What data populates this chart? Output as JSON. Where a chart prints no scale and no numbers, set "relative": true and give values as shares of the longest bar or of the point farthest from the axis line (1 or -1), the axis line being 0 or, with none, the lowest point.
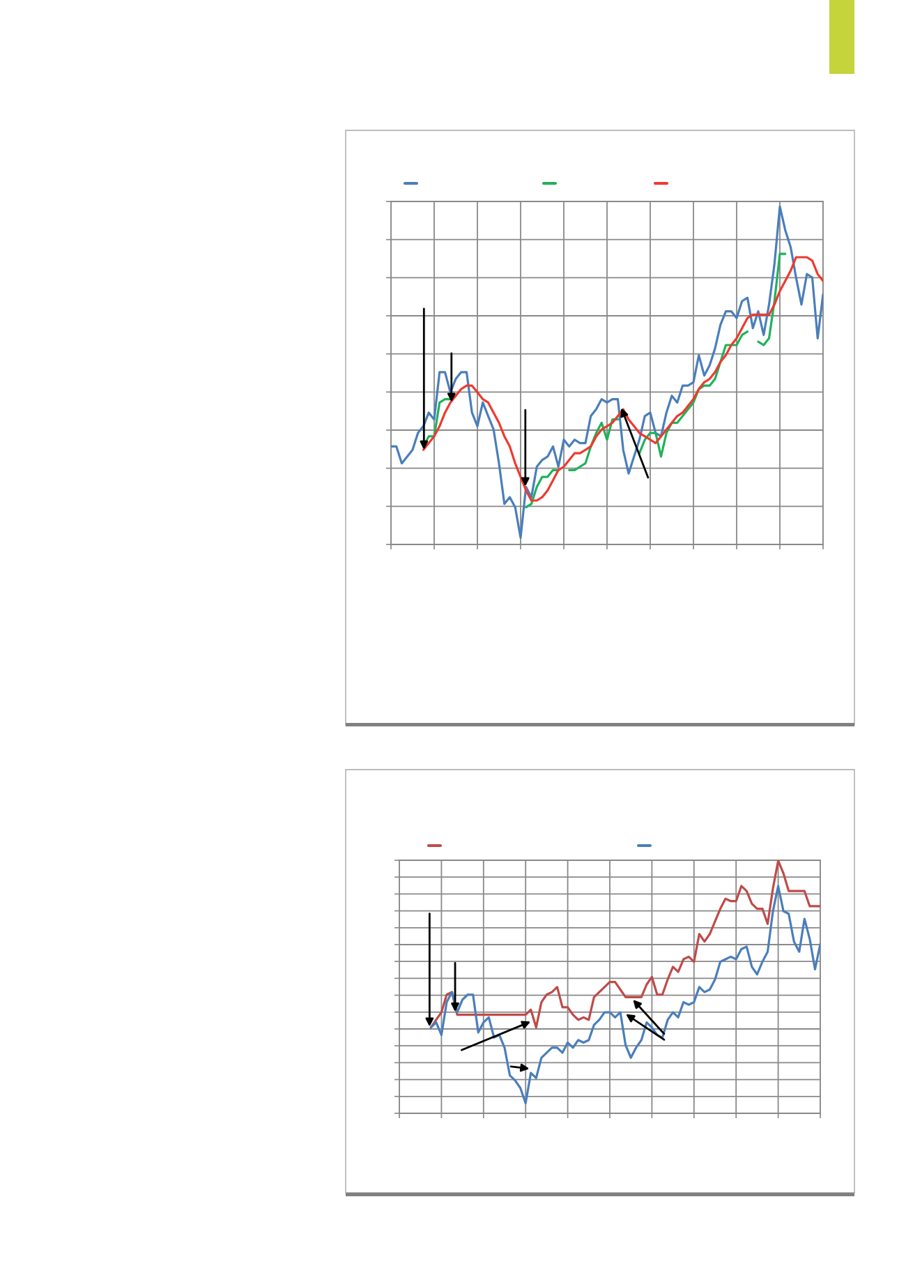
{
  "chart_data": [
    {
      "type": "line",
      "relative": true,
      "grid": true,
      "tick_labels": false,
      "categories": [
        null,
        null,
        null,
        null,
        null,
        null,
        null,
        null,
        null,
        null,
        null,
        null,
        null,
        null,
        null,
        null,
        null,
        null,
        null,
        null,
        null,
        null,
        null,
        null,
        null,
        null,
        null,
        null,
        null,
        null,
        null,
        null,
        null,
        null,
        null,
        null,
        null,
        null,
        null,
        null,
        null,
        null,
        null,
        null,
        null,
        null,
        null,
        null,
        null,
        null,
        null,
        null,
        null,
        null,
        null,
        null,
        null,
        null,
        null,
        null,
        null,
        null,
        null,
        null,
        null,
        null,
        null,
        null,
        null,
        null,
        null,
        null,
        null,
        null,
        null,
        null,
        null,
        null,
        null,
        null,
        null
      ],
      "series": [
        {
          "color": "#4a7ebb",
          "values": [
            0.29,
            0.29,
            0.24,
            0.26,
            0.28,
            0.33,
            0.35,
            0.39,
            0.37,
            0.51,
            0.51,
            0.45,
            0.49,
            0.51,
            0.51,
            0.39,
            0.35,
            0.42,
            0.38,
            0.34,
            0.24,
            0.12,
            0.14,
            0.11,
            0.02,
            0.17,
            0.14,
            0.23,
            0.25,
            0.26,
            0.29,
            0.23,
            0.31,
            0.29,
            0.31,
            0.3,
            0.3,
            0.38,
            0.4,
            0.43,
            0.42,
            0.43,
            0.43,
            0.28,
            0.21,
            0.26,
            0.31,
            0.38,
            0.39,
            0.33,
            0.32,
            0.39,
            0.44,
            0.42,
            0.47,
            0.47,
            0.48,
            0.56,
            0.5,
            0.53,
            0.58,
            0.65,
            0.69,
            0.69,
            0.67,
            0.72,
            0.73,
            0.64,
            0.69,
            0.62,
            0.71,
            0.83,
            1,
            0.93,
            0.88,
            0.79,
            0.71,
            0.8,
            0.79,
            0.61,
            0.74
          ]
        },
        {
          "color": "#1fb25a",
          "values": [
            null,
            null,
            null,
            null,
            null,
            null,
            0.29,
            0.32,
            0.32,
            0.42,
            0.43,
            0.43,
            null,
            null,
            null,
            null,
            null,
            null,
            null,
            null,
            null,
            null,
            null,
            null,
            null,
            0.11,
            0.12,
            0.17,
            0.2,
            0.2,
            0.22,
            0.22,
            null,
            0.22,
            0.22,
            0.23,
            0.24,
            0.29,
            0.33,
            0.36,
            0.31,
            0.37,
            0.37,
            null,
            null,
            null,
            0.27,
            0.31,
            0.33,
            0.33,
            0.26,
            0.33,
            0.36,
            0.36,
            0.38,
            0.4,
            0.42,
            0.46,
            0.47,
            0.47,
            0.49,
            0.54,
            0.59,
            0.59,
            0.59,
            0.62,
            0.63,
            null,
            0.6,
            0.59,
            0.61,
            0.72,
            0.86,
            0.86,
            null,
            null,
            null,
            null,
            null,
            null,
            null
          ]
        },
        {
          "color": "#ee3a2e",
          "values": [
            null,
            null,
            null,
            null,
            null,
            null,
            0.28,
            0.3,
            0.32,
            0.35,
            0.39,
            0.42,
            0.44,
            0.46,
            0.47,
            0.47,
            0.45,
            0.43,
            0.42,
            0.39,
            0.36,
            0.32,
            0.29,
            0.24,
            0.2,
            0.16,
            0.13,
            0.13,
            0.14,
            0.16,
            0.19,
            0.22,
            0.23,
            0.25,
            0.27,
            0.27,
            0.28,
            0.29,
            0.32,
            0.34,
            0.35,
            0.36,
            0.38,
            0.4,
            0.37,
            0.35,
            0.33,
            0.32,
            0.31,
            0.3,
            0.32,
            0.34,
            0.36,
            0.38,
            0.39,
            0.41,
            0.43,
            0.46,
            0.48,
            0.49,
            0.51,
            0.54,
            0.56,
            0.59,
            0.61,
            0.64,
            0.67,
            0.68,
            0.68,
            0.68,
            0.68,
            0.71,
            0.75,
            0.78,
            0.81,
            0.85,
            0.85,
            0.85,
            0.84,
            0.8,
            0.78
          ]
        }
      ]
    },
    {
      "type": "line",
      "relative": true,
      "grid": true,
      "tick_labels": false,
      "categories": [
        null,
        null,
        null,
        null,
        null,
        null,
        null,
        null,
        null,
        null,
        null,
        null,
        null,
        null,
        null,
        null,
        null,
        null,
        null,
        null,
        null,
        null,
        null,
        null,
        null,
        null,
        null,
        null,
        null,
        null,
        null,
        null,
        null,
        null,
        null,
        null,
        null,
        null,
        null,
        null,
        null,
        null,
        null,
        null,
        null,
        null,
        null,
        null,
        null,
        null,
        null,
        null,
        null,
        null,
        null,
        null,
        null,
        null,
        null,
        null,
        null,
        null,
        null,
        null,
        null,
        null,
        null,
        null,
        null,
        null,
        null,
        null,
        null,
        null,
        null,
        null,
        null,
        null,
        null,
        null,
        null
      ],
      "series": [
        {
          "color": "#be4b48",
          "values": [
            null,
            null,
            null,
            null,
            null,
            null,
            0.34,
            0.37,
            0.4,
            0.47,
            0.48,
            0.39,
            0.39,
            0.39,
            0.39,
            0.39,
            0.39,
            0.39,
            0.39,
            0.39,
            0.39,
            0.39,
            0.39,
            0.39,
            0.39,
            0.41,
            0.34,
            0.44,
            0.47,
            0.48,
            0.5,
            0.42,
            0.42,
            0.39,
            0.37,
            0.38,
            0.37,
            0.46,
            0.48,
            0.5,
            0.52,
            0.52,
            0.49,
            0.46,
            0.46,
            0.46,
            0.46,
            0.51,
            0.54,
            0.47,
            0.47,
            0.53,
            0.58,
            0.56,
            0.61,
            0.62,
            0.6,
            0.71,
            0.68,
            0.71,
            0.76,
            0.81,
            0.85,
            0.84,
            0.84,
            0.9,
            0.88,
            0.83,
            0.81,
            0.81,
            0.75,
            0.89,
            1,
            0.95,
            0.88,
            0.88,
            0.88,
            0.88,
            0.82,
            0.82,
            0.82
          ]
        },
        {
          "color": "#4a7ebb",
          "values": [
            null,
            null,
            null,
            null,
            null,
            null,
            0.34,
            0.36,
            0.31,
            0.44,
            0.48,
            0.4,
            0.45,
            0.47,
            0.47,
            0.32,
            0.36,
            0.38,
            0.3,
            0.31,
            0.26,
            0.15,
            0.13,
            0.1,
            0.04,
            0.16,
            0.14,
            0.22,
            0.24,
            0.26,
            0.26,
            0.24,
            0.28,
            0.26,
            0.29,
            0.28,
            0.29,
            0.35,
            0.37,
            0.4,
            0.4,
            0.38,
            0.4,
            0.27,
            0.22,
            0.26,
            0.29,
            0.36,
            0.34,
            0.31,
            0.3,
            0.37,
            0.4,
            0.38,
            0.44,
            0.43,
            0.44,
            0.5,
            0.48,
            0.49,
            0.53,
            0.6,
            0.61,
            0.62,
            0.61,
            0.65,
            0.66,
            0.58,
            0.55,
            0.6,
            0.64,
            0.8,
            0.9,
            0.8,
            0.79,
            0.68,
            0.64,
            0.77,
            0.69,
            0.57,
            0.67
          ]
        }
      ]
    }
  ]
}
